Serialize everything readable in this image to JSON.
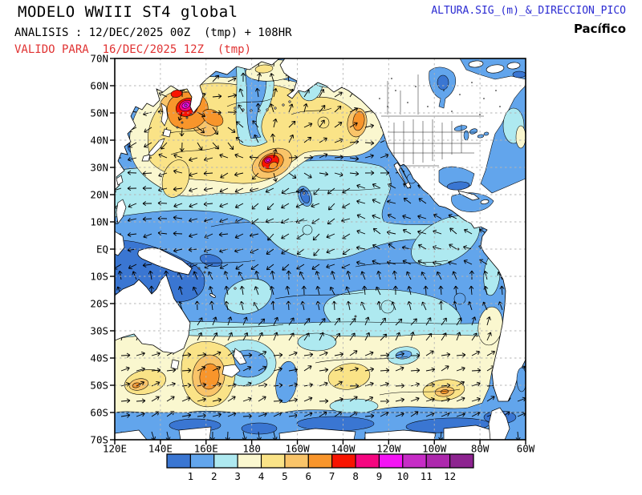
{
  "header": {
    "title": "MODELO WWIII ST4 global",
    "analysis": "ANALISIS : 12/DEC/2025 00Z  (tmp) + 108HR",
    "valid": "VALIDO PARA  16/DEC/2025 12Z  (tmp)",
    "field": "ALTURA.SIG_(m)_&_DIRECCION_PICO",
    "region": "Pacífico"
  },
  "axes": {
    "lat": [
      "70N",
      "60N",
      "50N",
      "40N",
      "30N",
      "20N",
      "10N",
      "EQ",
      "10S",
      "20S",
      "30S",
      "40S",
      "50S",
      "60S",
      "70S"
    ],
    "lon": [
      "120E",
      "140E",
      "160E",
      "180",
      "160W",
      "140W",
      "120W",
      "100W",
      "80W",
      "60W"
    ]
  },
  "colorbar": {
    "labels": [
      "1",
      "2",
      "3",
      "4",
      "5",
      "6",
      "7",
      "8",
      "9",
      "10",
      "11",
      "12"
    ],
    "palette": [
      "#3a76d2",
      "#62a5ec",
      "#aee9f0",
      "#faf7cf",
      "#fae387",
      "#f9c469",
      "#f8952b",
      "#f81400",
      "#f50680",
      "#f414f4",
      "#c62cc6",
      "#ad28ad",
      "#8d2490"
    ]
  },
  "style": {
    "title_color": "#000000",
    "valid_color": "#e03232",
    "field_label_color": "#2a2ad2",
    "grid_color": "#b4b4b4",
    "land_color": "#ffffff",
    "arrow_color": "#000000"
  },
  "arrows": {
    "spacing": 19,
    "length": 11
  }
}
